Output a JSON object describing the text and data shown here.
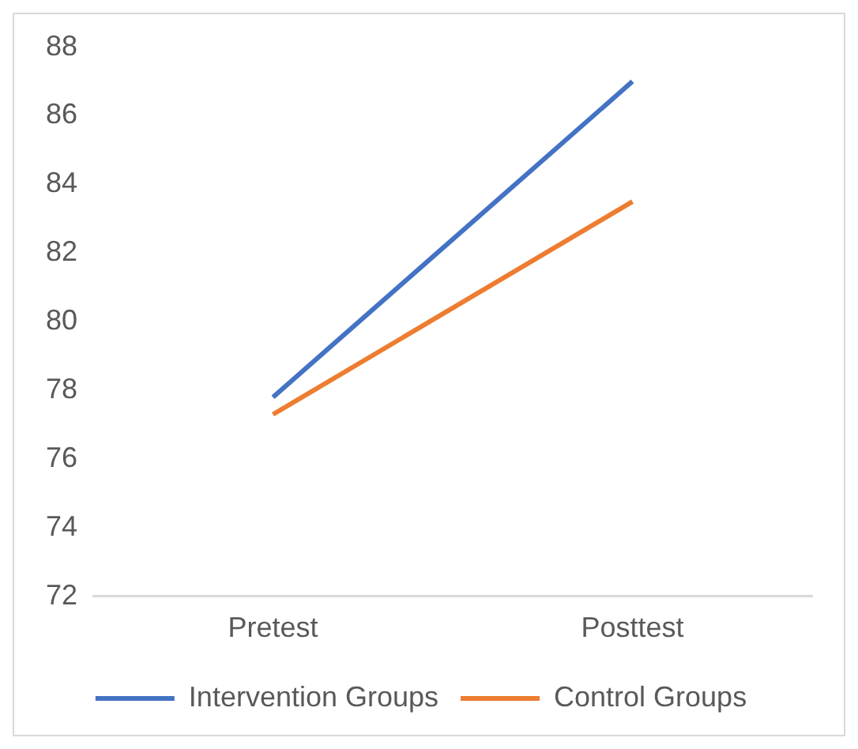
{
  "chart_data": {
    "type": "line",
    "categories": [
      "Pretest",
      "Posttest"
    ],
    "series": [
      {
        "name": "Intervention Groups",
        "color": "#4472c4",
        "values": [
          77.8,
          87.0
        ]
      },
      {
        "name": "Control Groups",
        "color": "#ed7d31",
        "values": [
          77.3,
          83.5
        ]
      }
    ],
    "ylim": [
      72,
      88
    ],
    "yticks": [
      72,
      74,
      76,
      78,
      80,
      82,
      84,
      86,
      88
    ],
    "grid": false,
    "legend": "bottom",
    "marker": "none",
    "line_style": "solid"
  }
}
